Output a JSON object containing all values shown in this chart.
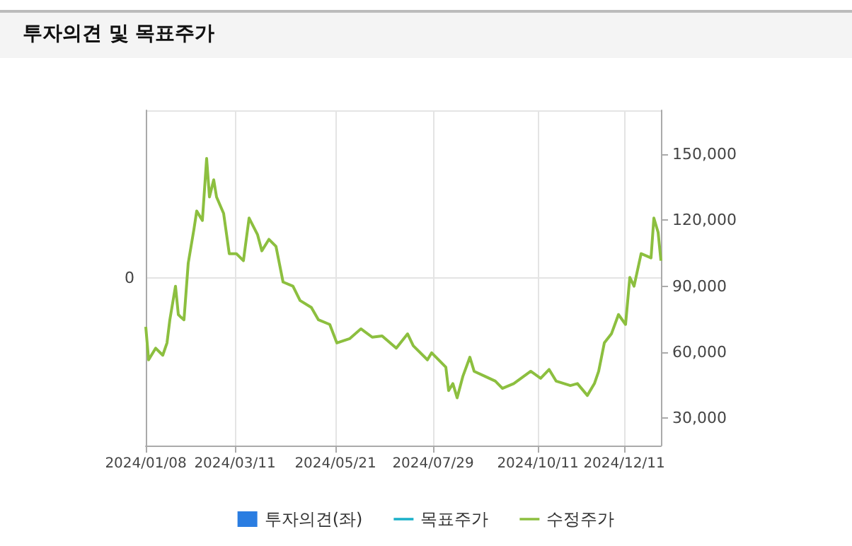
{
  "chart_data": {
    "type": "line",
    "title": "투자의견 및 목표주가",
    "x": [
      "2024-01-08",
      "2024-01-10",
      "2024-01-15",
      "2024-01-20",
      "2024-01-23",
      "2024-01-25",
      "2024-01-29",
      "2024-01-31",
      "2024-02-02",
      "2024-02-04",
      "2024-02-07",
      "2024-02-11",
      "2024-02-13",
      "2024-02-17",
      "2024-02-20",
      "2024-02-22",
      "2024-02-25",
      "2024-02-27",
      "2024-03-03",
      "2024-03-07",
      "2024-03-12",
      "2024-03-17",
      "2024-03-21",
      "2024-03-27",
      "2024-03-30",
      "2024-04-04",
      "2024-04-09",
      "2024-04-14",
      "2024-04-21",
      "2024-04-26",
      "2024-05-04",
      "2024-05-09",
      "2024-05-17",
      "2024-05-22",
      "2024-05-31",
      "2024-06-08",
      "2024-06-16",
      "2024-06-23",
      "2024-07-03",
      "2024-07-11",
      "2024-07-15",
      "2024-07-25",
      "2024-07-28",
      "2024-08-07",
      "2024-08-09",
      "2024-08-12",
      "2024-08-15",
      "2024-08-19",
      "2024-08-24",
      "2024-08-27",
      "2024-09-04",
      "2024-09-11",
      "2024-09-16",
      "2024-09-24",
      "2024-10-06",
      "2024-10-13",
      "2024-10-19",
      "2024-10-24",
      "2024-11-03",
      "2024-11-08",
      "2024-11-15",
      "2024-11-20",
      "2024-11-23",
      "2024-11-27",
      "2024-12-02",
      "2024-12-07",
      "2024-12-12",
      "2024-12-15",
      "2024-12-18",
      "2024-12-23",
      "2024-12-30",
      "2025-01-01",
      "2025-01-04",
      "2025-01-06"
    ],
    "series": [
      {
        "name": "투자의견(좌)",
        "type": "bar",
        "axis": "y",
        "color": "#2a7de1",
        "values": [
          null,
          null,
          null,
          null,
          null,
          null,
          null,
          null,
          null,
          null,
          null,
          null,
          null,
          null,
          null,
          null,
          null,
          null,
          null,
          null,
          null,
          null,
          null,
          null,
          null,
          null,
          null,
          null,
          null,
          null,
          null,
          null,
          null,
          null,
          null,
          null,
          null,
          null,
          null,
          null,
          null,
          null,
          null,
          null,
          null,
          null,
          null,
          null,
          null,
          null,
          null,
          null,
          null,
          null,
          null,
          null,
          null,
          null,
          null,
          null,
          null,
          null,
          null,
          null,
          null,
          null,
          null,
          null,
          null,
          null,
          null,
          null,
          null,
          null
        ]
      },
      {
        "name": "목표주가",
        "type": "line",
        "axis": "y2",
        "color": "#1ab0c8",
        "values": [
          null,
          null,
          null,
          null,
          null,
          null,
          null,
          null,
          null,
          null,
          null,
          null,
          null,
          null,
          null,
          null,
          null,
          null,
          null,
          null,
          null,
          null,
          null,
          null,
          null,
          null,
          null,
          null,
          null,
          null,
          null,
          null,
          null,
          null,
          null,
          null,
          null,
          null,
          null,
          null,
          null,
          null,
          null,
          null,
          null,
          null,
          null,
          null,
          null,
          null,
          null,
          null,
          null,
          null,
          null,
          null,
          null,
          null,
          null,
          null,
          null,
          null,
          null,
          null,
          null,
          null,
          null,
          null,
          null,
          null,
          null,
          null,
          null,
          null
        ]
      },
      {
        "name": "수정주가",
        "axis": "y2",
        "color": "#8cbf3f",
        "values": [
          71500,
          56500,
          61800,
          58600,
          64200,
          74700,
          90000,
          77100,
          75800,
          74700,
          100500,
          115800,
          124200,
          119900,
          148100,
          130600,
          138400,
          130600,
          123100,
          104800,
          104800,
          101600,
          121000,
          113400,
          106100,
          111300,
          108100,
          91900,
          90000,
          83500,
          80300,
          74700,
          72600,
          64200,
          66100,
          70600,
          66800,
          67400,
          61800,
          68300,
          62900,
          56500,
          59700,
          53200,
          42500,
          45700,
          39200,
          48900,
          57700,
          51300,
          48900,
          46800,
          43500,
          45700,
          51300,
          48100,
          52100,
          46800,
          44800,
          45700,
          40300,
          45700,
          51300,
          64200,
          68300,
          77100,
          72600,
          94000,
          90000,
          104800,
          102900,
          121000,
          114500,
          101600
        ]
      }
    ],
    "xlim": [
      "2024-01-08",
      "2025-01-06"
    ],
    "xticks": [
      {
        "value": "2024-01-08",
        "label": "2024/01/08"
      },
      {
        "value": "2024-03-11",
        "label": "2024/03/11"
      },
      {
        "value": "2024-05-21",
        "label": "2024/05/21"
      },
      {
        "value": "2024-07-29",
        "label": "2024/07/29"
      },
      {
        "value": "2024-10-11",
        "label": "2024/10/11"
      },
      {
        "value": "2024-12-11",
        "label": "2024/12/11"
      }
    ],
    "annotations": [
      "0"
    ],
    "y2lim": [
      17500,
      170000
    ],
    "y2ticks": [
      {
        "value": 30000,
        "label": "30,000"
      },
      {
        "value": 60000,
        "label": "60,000"
      },
      {
        "value": 90000,
        "label": "90,000"
      },
      {
        "value": 120000,
        "label": "120,000"
      },
      {
        "value": 150000,
        "label": "150,000"
      }
    ],
    "grid": true,
    "legend": "bottom",
    "marker": "none",
    "line_style": "solid"
  }
}
